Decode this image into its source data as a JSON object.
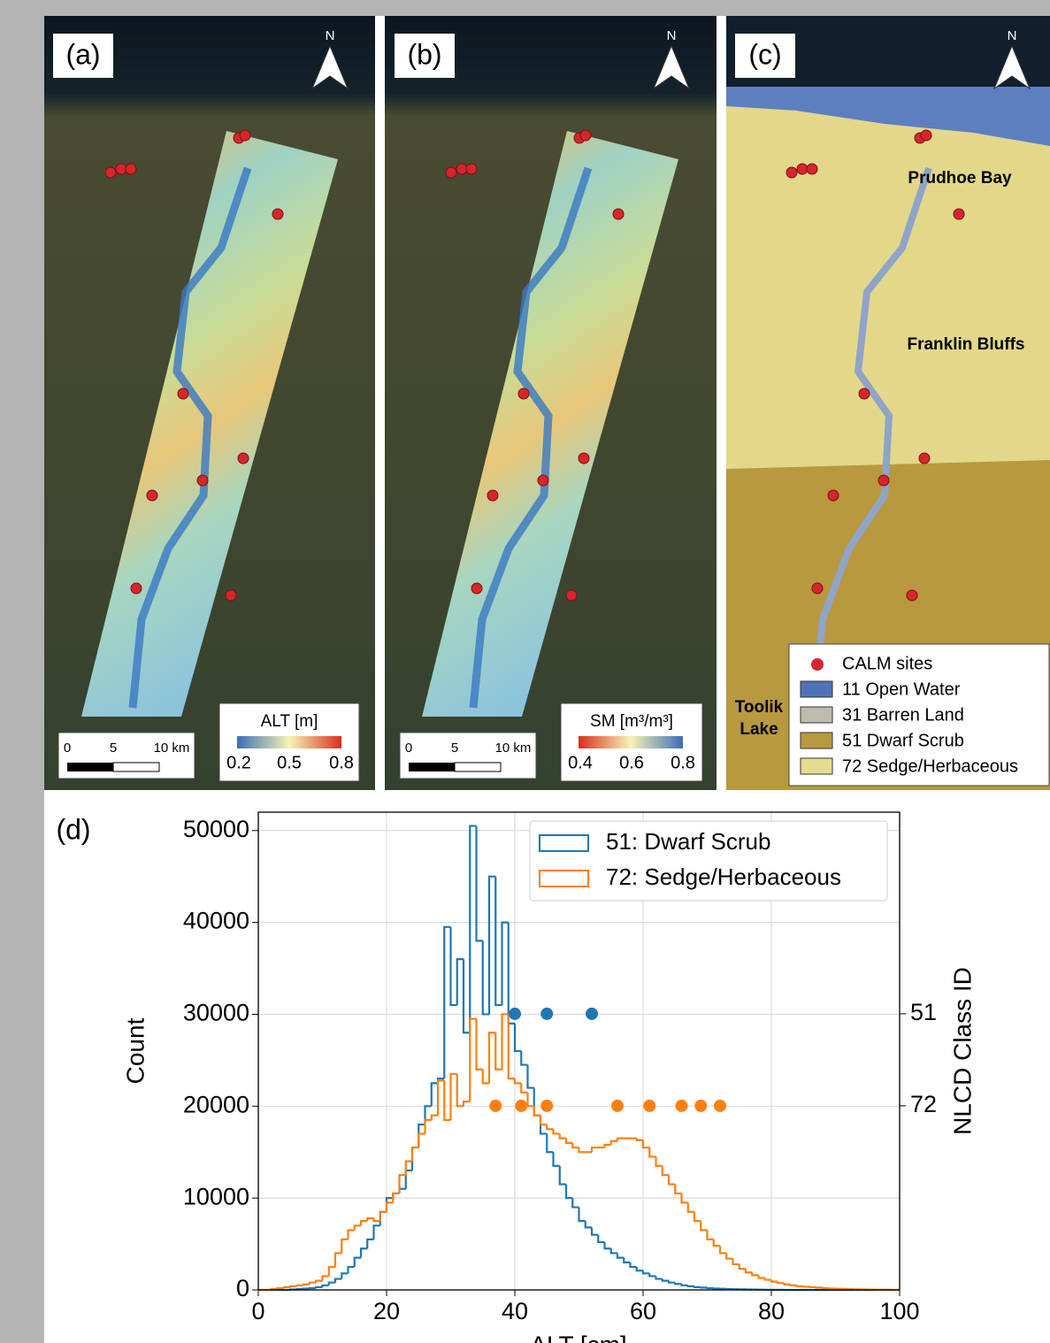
{
  "maps": {
    "panels": [
      {
        "label": "(a)",
        "north": "N",
        "colorbar": {
          "title": "ALT [m]",
          "ticks": [
            "0.2",
            "0.5",
            "0.8"
          ]
        },
        "scalebar": [
          "0",
          "5",
          "10 km"
        ]
      },
      {
        "label": "(b)",
        "north": "N",
        "colorbar": {
          "title": "SM [m³/m³]",
          "ticks": [
            "0.4",
            "0.6",
            "0.8"
          ]
        },
        "scalebar": [
          "0",
          "5",
          "10 km"
        ]
      },
      {
        "label": "(c)",
        "north": "N",
        "places": [
          "Prudhoe Bay",
          "Franklin Bluffs",
          "Toolik",
          "Lake"
        ],
        "legend": [
          "CALM sites",
          "11 Open Water",
          "31 Barren Land",
          "51 Dwarf Scrub",
          "72 Sedge/Herbaceous"
        ]
      }
    ]
  },
  "chart_data": {
    "type": "histogram",
    "panel_label": "(d)",
    "xlabel": "ALT [cm]",
    "ylabel": "Count",
    "y2label": "NLCD Class ID",
    "bins": [
      0,
      1,
      2,
      3,
      4,
      5,
      6,
      7,
      8,
      9,
      10,
      11,
      12,
      13,
      14,
      15,
      16,
      17,
      18,
      19,
      20,
      21,
      22,
      23,
      24,
      25,
      26,
      27,
      28,
      29,
      30,
      31,
      32,
      33,
      34,
      35,
      36,
      37,
      38,
      39,
      40,
      41,
      42,
      43,
      44,
      45,
      46,
      47,
      48,
      49,
      50,
      51,
      52,
      53,
      54,
      55,
      56,
      57,
      58,
      59,
      60,
      61,
      62,
      63,
      64,
      65,
      66,
      67,
      68,
      69,
      70,
      71,
      72,
      73,
      74,
      75,
      76,
      77,
      78,
      79,
      80,
      81,
      82,
      83,
      84,
      85,
      86,
      87,
      88,
      89,
      90,
      91,
      92,
      93,
      94,
      95,
      96,
      97,
      98,
      99,
      100
    ],
    "series": [
      {
        "name": "51: Dwarf Scrub",
        "color": "#1f77b4",
        "values": [
          0,
          0,
          0,
          0,
          0,
          50,
          100,
          150,
          200,
          300,
          500,
          800,
          1200,
          1800,
          2500,
          3500,
          4500,
          5500,
          7000,
          8500,
          10000,
          10500,
          11000,
          13000,
          15500,
          18000,
          20000,
          22500,
          23000,
          39500,
          31000,
          36000,
          28000,
          50500,
          38000,
          30000,
          45000,
          31000,
          40000,
          29000,
          26000,
          24500,
          22000,
          19000,
          17000,
          15000,
          13500,
          11500,
          10000,
          9000,
          7500,
          6800,
          6000,
          5200,
          4500,
          4000,
          3500,
          3000,
          2500,
          2100,
          1800,
          1500,
          1200,
          1000,
          800,
          650,
          500,
          400,
          300,
          250,
          200,
          150,
          120,
          100,
          80,
          60,
          50,
          40,
          30,
          20,
          10,
          10,
          0,
          0,
          0,
          0,
          0,
          0,
          0,
          0,
          0,
          0,
          0,
          0,
          0,
          0,
          0,
          0,
          0,
          0
        ]
      },
      {
        "name": "72: Sedge/Herbaceous",
        "color": "#ff7f0e",
        "values": [
          0,
          0,
          100,
          200,
          300,
          400,
          500,
          600,
          800,
          1000,
          1500,
          2500,
          4000,
          5500,
          6500,
          7000,
          7500,
          7800,
          7500,
          8500,
          9500,
          10500,
          12500,
          14000,
          15500,
          17000,
          18500,
          19000,
          22800,
          18500,
          23500,
          20000,
          20500,
          29500,
          24000,
          22500,
          28000,
          24000,
          30000,
          23000,
          22500,
          21500,
          20000,
          19000,
          18000,
          17500,
          17000,
          16500,
          16000,
          15500,
          15000,
          15000,
          15500,
          15500,
          15800,
          16200,
          16500,
          16500,
          16500,
          16300,
          15500,
          14500,
          13500,
          12500,
          11500,
          10500,
          9500,
          8500,
          7500,
          6500,
          5500,
          4800,
          4000,
          3400,
          2800,
          2300,
          1900,
          1600,
          1300,
          1100,
          900,
          750,
          600,
          500,
          400,
          350,
          300,
          250,
          200,
          150,
          120,
          100,
          80,
          60,
          50,
          40,
          30,
          20,
          10,
          0
        ]
      }
    ],
    "points": [
      {
        "color": "#1f77b4",
        "axis": "y2",
        "x": [
          40,
          45,
          52
        ],
        "y": [
          51,
          51,
          51
        ]
      },
      {
        "color": "#ff7f0e",
        "axis": "y2",
        "x": [
          37,
          41,
          45,
          56,
          61,
          66,
          69,
          72
        ],
        "y": [
          72,
          72,
          72,
          72,
          72,
          72,
          72,
          72
        ]
      }
    ],
    "xlim": [
      0,
      100
    ],
    "xticks": [
      0,
      20,
      40,
      60,
      80,
      100
    ],
    "ylim": [
      0,
      52000
    ],
    "yticks": [
      0,
      10000,
      20000,
      30000,
      40000,
      50000
    ],
    "y2lim": [
      114,
      5
    ],
    "y2ticks": [
      51,
      72
    ],
    "grid": true,
    "legend": "upper right"
  }
}
